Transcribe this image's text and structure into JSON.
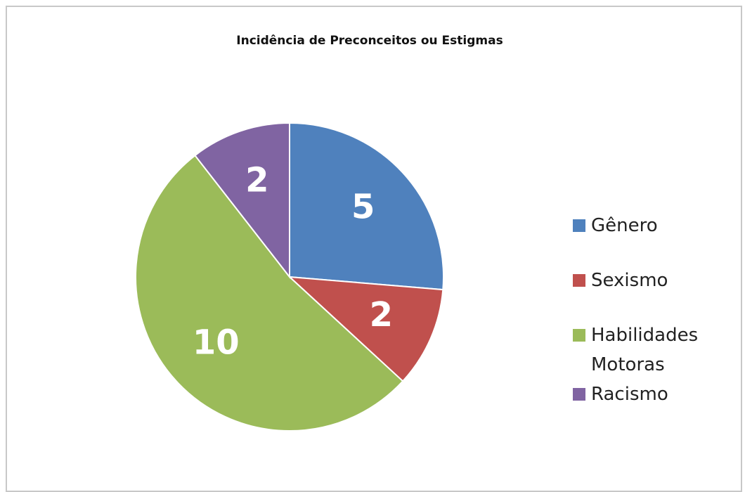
{
  "chart_data": {
    "type": "pie",
    "title": "Incidência de Preconceitos ou Estigmas",
    "categories": [
      "Gênero",
      "Sexismo",
      "Habilidades Motoras",
      "Racismo"
    ],
    "values": [
      5,
      2,
      10,
      2
    ],
    "colors": [
      "#4f81bd",
      "#c0504d",
      "#9bbb59",
      "#8064a2"
    ],
    "legend": "right"
  }
}
